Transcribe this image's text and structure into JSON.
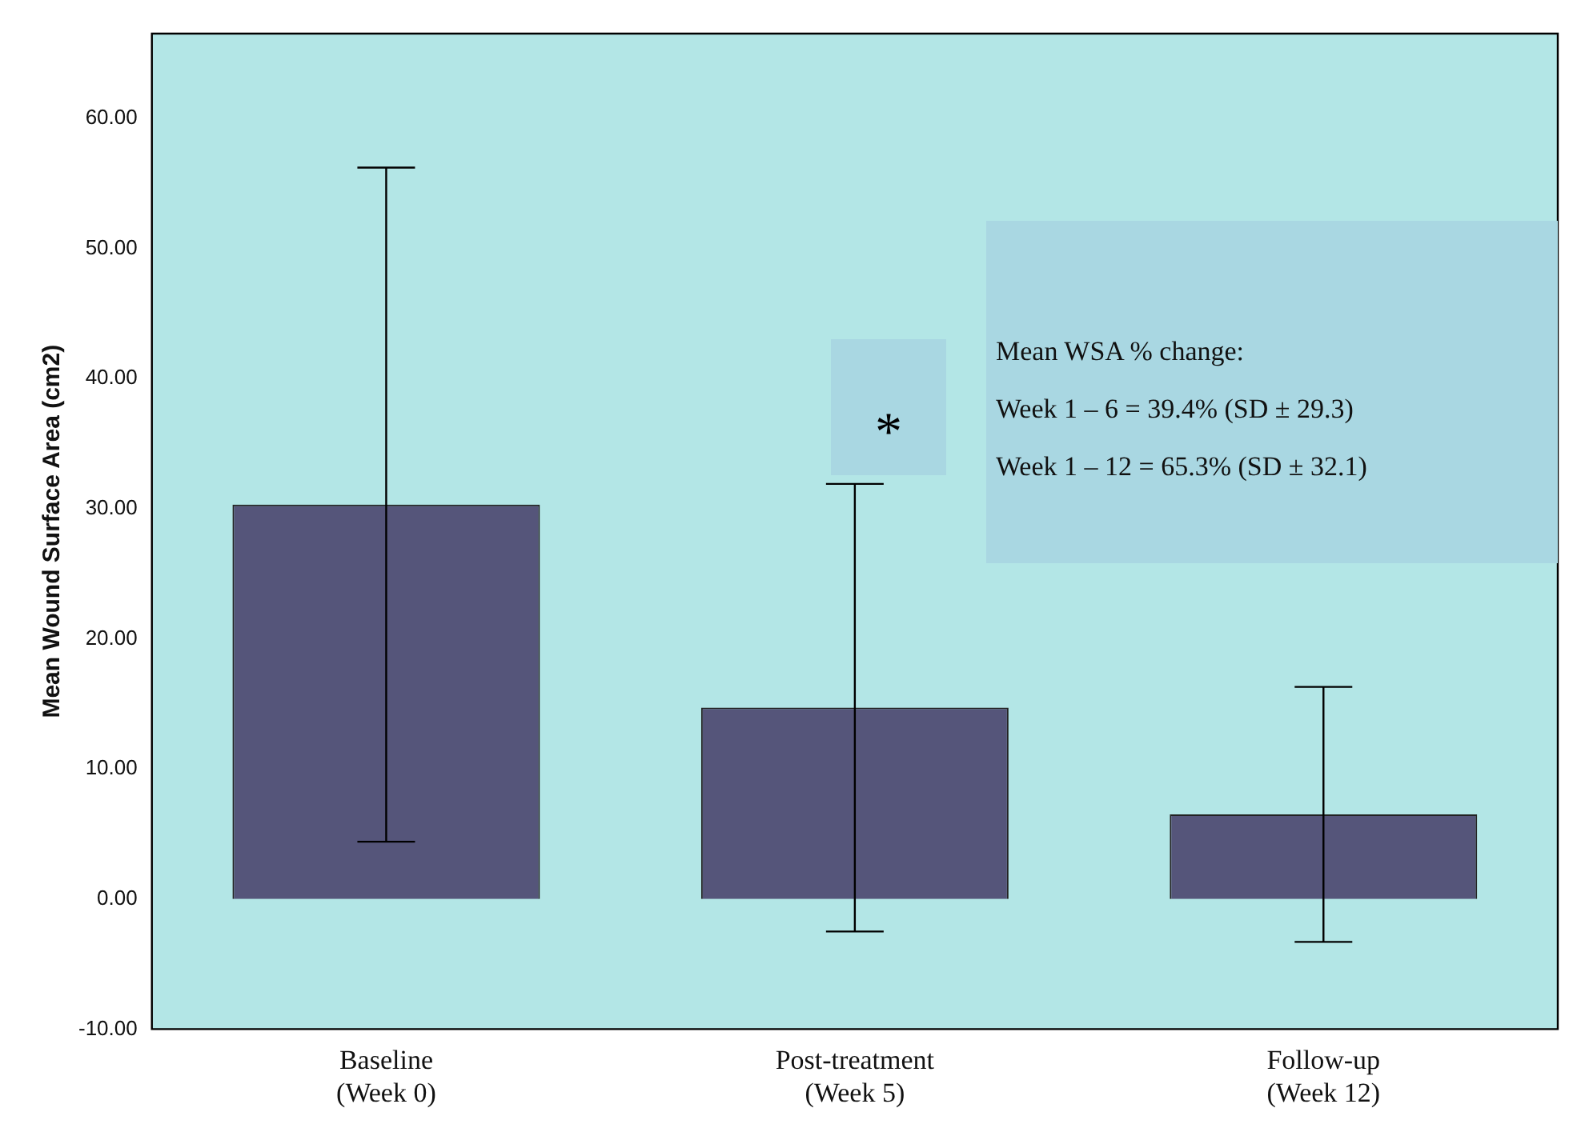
{
  "chart_data": {
    "type": "bar",
    "ylabel": "Mean Wound Surface Area (cm2)",
    "categories": [
      "Baseline\n(Week 0)",
      "Post-treatment\n(Week 5)",
      "Follow-up\n(Week 12)"
    ],
    "values": [
      30.3,
      14.7,
      6.5
    ],
    "errors": [
      25.9,
      17.2,
      9.8
    ],
    "color": "#55557a",
    "ylim": [
      -10,
      66.5
    ],
    "yticks": [
      {
        "value": -10,
        "label": "-10.00"
      },
      {
        "value": 0,
        "label": "0.00"
      },
      {
        "value": 10,
        "label": "10.00"
      },
      {
        "value": 20,
        "label": "20.00"
      },
      {
        "value": 30,
        "label": "30.00"
      },
      {
        "value": 40,
        "label": "40.00"
      },
      {
        "value": 50,
        "label": "50.00"
      },
      {
        "value": 60,
        "label": "60.00"
      }
    ],
    "annotations": [
      "*",
      "Mean WSA % change:",
      "Week 1 – 6 = 39.4% (SD ± 29.3)",
      "Week 1 – 12 = 65.3% (SD ± 32.1)"
    ],
    "grid": false,
    "legend": false
  }
}
